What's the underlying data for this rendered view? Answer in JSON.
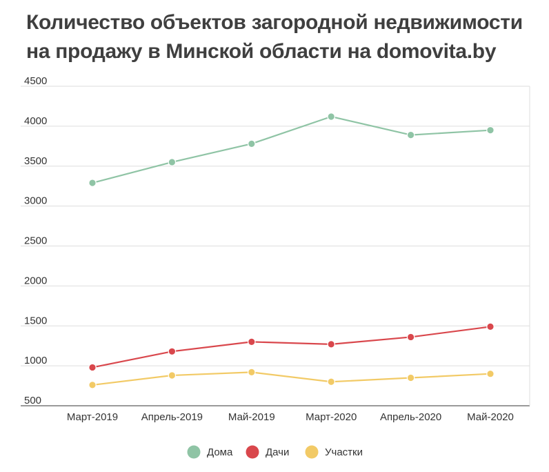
{
  "chart_data": {
    "type": "line",
    "title": "Количество объектов загородной недвижимости на продажу в Минской области на domovita.by",
    "xlabel": "",
    "ylabel": "",
    "categories": [
      "Март-2019",
      "Апрель-2019",
      "Май-2019",
      "Март-2020",
      "Апрель-2020",
      "Май-2020"
    ],
    "ylim": [
      500,
      4500
    ],
    "yticks": [
      500,
      1000,
      1500,
      2000,
      2500,
      3000,
      3500,
      4000,
      4500
    ],
    "grid": true,
    "legend_position": "bottom-center",
    "series": [
      {
        "name": "Дома",
        "color": "#8fc4a5",
        "values": [
          3290,
          3550,
          3780,
          4120,
          3890,
          3950
        ]
      },
      {
        "name": "Дачи",
        "color": "#d9474c",
        "values": [
          980,
          1180,
          1300,
          1270,
          1360,
          1490
        ]
      },
      {
        "name": "Участки",
        "color": "#f2ca66",
        "values": [
          760,
          880,
          920,
          800,
          850,
          900
        ]
      }
    ]
  }
}
